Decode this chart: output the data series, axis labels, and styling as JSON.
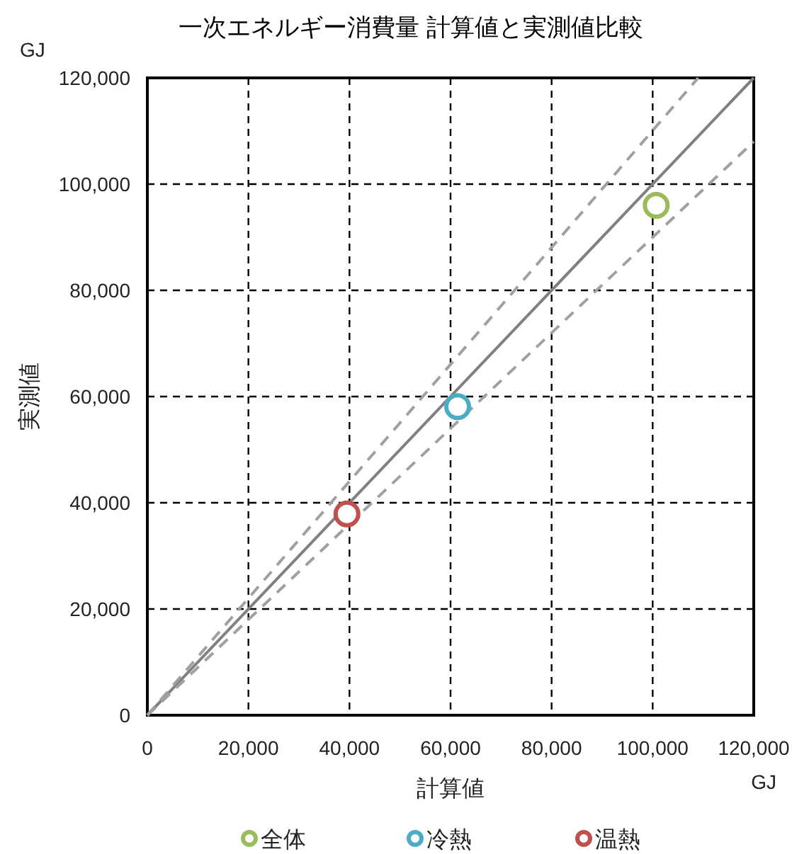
{
  "chart_data": {
    "type": "scatter",
    "title": "一次エネルギー消費量 計算値と実測値比較",
    "xlabel": "計算値",
    "ylabel": "実測値",
    "annotations": [
      "GJ",
      "GJ"
    ],
    "xlim": [
      0,
      120000
    ],
    "ylim": [
      0,
      120000
    ],
    "xticks": [
      {
        "value": 0,
        "label": "0"
      },
      {
        "value": 20000,
        "label": "20,000"
      },
      {
        "value": 40000,
        "label": "40,000"
      },
      {
        "value": 60000,
        "label": "60,000"
      },
      {
        "value": 80000,
        "label": "80,000"
      },
      {
        "value": 100000,
        "label": "100,000"
      },
      {
        "value": 120000,
        "label": "120,000"
      }
    ],
    "yticks": [
      {
        "value": 0,
        "label": "0"
      },
      {
        "value": 20000,
        "label": "20,000"
      },
      {
        "value": 40000,
        "label": "40,000"
      },
      {
        "value": 60000,
        "label": "60,000"
      },
      {
        "value": 80000,
        "label": "80,000"
      },
      {
        "value": 100000,
        "label": "100,000"
      },
      {
        "value": 120000,
        "label": "120,000"
      }
    ],
    "grid": true,
    "legend": "bottom",
    "series": [
      {
        "type": "line",
        "color": "#808080",
        "line_style": "solid",
        "x": [
          0,
          120000
        ],
        "values": [
          0,
          120000
        ]
      },
      {
        "type": "line",
        "color": "#a0a0a0",
        "line_style": "dashed",
        "x": [
          0,
          109000
        ],
        "values": [
          0,
          120000
        ]
      },
      {
        "type": "line",
        "color": "#a0a0a0",
        "line_style": "dashed",
        "x": [
          0,
          120000
        ],
        "values": [
          0,
          108000
        ]
      },
      {
        "name": "全体",
        "color": "#9bbb59",
        "marker": "circle",
        "x": [
          100700
        ],
        "values": [
          96000
        ]
      },
      {
        "name": "冷熱",
        "color": "#4bacc6",
        "marker": "circle",
        "x": [
          61400
        ],
        "values": [
          58100
        ]
      },
      {
        "name": "温熱",
        "color": "#c0504d",
        "marker": "circle",
        "x": [
          39500
        ],
        "values": [
          37900
        ]
      }
    ]
  }
}
